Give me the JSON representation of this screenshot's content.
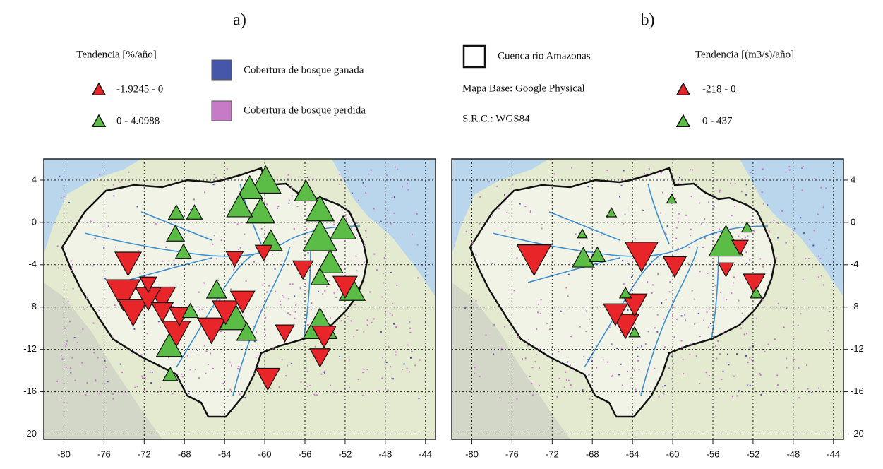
{
  "colors": {
    "negative": "#e8262a",
    "positive": "#5bbd45",
    "gained": "#4656a8",
    "lost": "#c77bc7"
  },
  "legend": {
    "trend_a": {
      "title": "Tendencia [%/año]",
      "items": [
        "-1.9245 - 0",
        "0 - 4.0988"
      ]
    },
    "cover": [
      "Cobertura de bosque ganada",
      "Cobertura de bosque perdida"
    ],
    "basin": "Cuenca río Amazonas",
    "base_map": "Mapa Base: Google Physical",
    "crs": "S.R.C.: WGS84",
    "trend_b": {
      "title": "Tendencia [(m3/s)/año]",
      "items": [
        "-218 - 0",
        "0 - 437"
      ]
    }
  },
  "panels": [
    {
      "label": "a)",
      "xlim": [
        -82,
        -43
      ],
      "ylim": [
        -20.5,
        6
      ],
      "xticks": [
        -80,
        -76,
        -72,
        -68,
        -64,
        -60,
        -56,
        -52,
        -48,
        -44
      ],
      "yticks": [
        4,
        0,
        -4,
        -8,
        -12,
        -16,
        -20
      ],
      "markers": [
        {
          "lon": -59.9,
          "lat": 3.9,
          "value": 3
        },
        {
          "lon": -61.5,
          "lat": 3.2,
          "value": 2
        },
        {
          "lon": -62.5,
          "lat": 1.5,
          "value": 2
        },
        {
          "lon": -60.4,
          "lat": 1,
          "value": 2.5
        },
        {
          "lon": -55.9,
          "lat": 2.9,
          "value": 1.5
        },
        {
          "lon": -54.5,
          "lat": 1.2,
          "value": 2.5
        },
        {
          "lon": -52.2,
          "lat": -0.6,
          "value": 2
        },
        {
          "lon": -54.5,
          "lat": -1.4,
          "value": 4
        },
        {
          "lon": -53.5,
          "lat": -3.8,
          "value": 2
        },
        {
          "lon": -59.4,
          "lat": -1.8,
          "value": 1.5
        },
        {
          "lon": -54.5,
          "lat": -9.7,
          "value": 4
        },
        {
          "lon": -51.3,
          "lat": -6.4,
          "value": 2
        },
        {
          "lon": -63,
          "lat": -9,
          "value": 3
        },
        {
          "lon": -69.5,
          "lat": -11.7,
          "value": 2
        },
        {
          "lon": -64.8,
          "lat": -6.4,
          "value": 1
        },
        {
          "lon": -54.5,
          "lat": -5.2,
          "value": 0.8
        },
        {
          "lon": -68.8,
          "lat": 0.9,
          "value": 0.5
        },
        {
          "lon": -67,
          "lat": 0.9,
          "value": 0.5
        },
        {
          "lon": -68.9,
          "lat": -1.1,
          "value": 0.7
        },
        {
          "lon": -68.1,
          "lat": -2.8,
          "value": 0.5
        },
        {
          "lon": -67.4,
          "lat": -8.4,
          "value": 0.5
        },
        {
          "lon": -61.8,
          "lat": -10.4,
          "value": 1
        },
        {
          "lon": -69.4,
          "lat": -14.4,
          "value": 0.4
        },
        {
          "lon": -73.6,
          "lat": -3.8,
          "value": -1
        },
        {
          "lon": -74.1,
          "lat": -6.7,
          "value": -1.9
        },
        {
          "lon": -73.1,
          "lat": -8.4,
          "value": -1.3
        },
        {
          "lon": -71.6,
          "lat": -7.1,
          "value": -0.9
        },
        {
          "lon": -70.2,
          "lat": -7.1,
          "value": -1
        },
        {
          "lon": -68.8,
          "lat": -10.4,
          "value": -1.2
        },
        {
          "lon": -65.3,
          "lat": -10.1,
          "value": -1.2
        },
        {
          "lon": -63.9,
          "lat": -8.4,
          "value": -1
        },
        {
          "lon": -62.2,
          "lat": -7.4,
          "value": -0.8
        },
        {
          "lon": -56.2,
          "lat": -4.4,
          "value": -0.5
        },
        {
          "lon": -60.1,
          "lat": -2.8,
          "value": -0.3
        },
        {
          "lon": -58,
          "lat": -10.4,
          "value": -0.4
        },
        {
          "lon": -54.1,
          "lat": -10.7,
          "value": -0.8
        },
        {
          "lon": -54.5,
          "lat": -12.7,
          "value": -0.5
        },
        {
          "lon": -59.7,
          "lat": -14.7,
          "value": -0.8
        },
        {
          "lon": -52,
          "lat": -6,
          "value": -0.8
        },
        {
          "lon": -68.5,
          "lat": -8.8,
          "value": -0.5
        },
        {
          "lon": -70.2,
          "lat": -8.4,
          "value": -0.6
        },
        {
          "lon": -63,
          "lat": -3.4,
          "value": -0.3
        },
        {
          "lon": -71.6,
          "lat": -5.8,
          "value": -0.3
        }
      ]
    },
    {
      "label": "b)",
      "xlim": [
        -82,
        -43
      ],
      "ylim": [
        -20.5,
        6
      ],
      "xticks": [
        -80,
        -76,
        -72,
        -68,
        -64,
        -60,
        -56,
        -52,
        -48,
        -44
      ],
      "yticks": [
        4,
        0,
        -4,
        -8,
        -12,
        -16,
        -20
      ],
      "markers": [
        {
          "lon": -73.8,
          "lat": -3.4,
          "value": -218
        },
        {
          "lon": -63.1,
          "lat": -3.1,
          "value": -200
        },
        {
          "lon": -59.8,
          "lat": -4.1,
          "value": -80
        },
        {
          "lon": -64.7,
          "lat": -9.7,
          "value": -120
        },
        {
          "lon": -63.8,
          "lat": -7.7,
          "value": -100
        },
        {
          "lon": -65.7,
          "lat": -8.6,
          "value": -90
        },
        {
          "lon": -53.3,
          "lat": -2.3,
          "value": -30
        },
        {
          "lon": -51.9,
          "lat": -5.7,
          "value": -70
        },
        {
          "lon": -54.7,
          "lat": -4.4,
          "value": -25
        },
        {
          "lon": -54.7,
          "lat": -1.9,
          "value": 437
        },
        {
          "lon": -68.9,
          "lat": -3.4,
          "value": 140
        },
        {
          "lon": -67.5,
          "lat": -3.1,
          "value": 60
        },
        {
          "lon": -64.7,
          "lat": -6.7,
          "value": 20
        },
        {
          "lon": -63.8,
          "lat": -10.4,
          "value": 15
        },
        {
          "lon": -51.7,
          "lat": -6.7,
          "value": 20
        },
        {
          "lon": -52.6,
          "lat": -0.5,
          "value": 15
        },
        {
          "lon": -60.1,
          "lat": 2.2,
          "value": 10
        },
        {
          "lon": -66.1,
          "lat": 0.9,
          "value": 10
        },
        {
          "lon": -69,
          "lat": -1.1,
          "value": 8
        }
      ]
    }
  ]
}
